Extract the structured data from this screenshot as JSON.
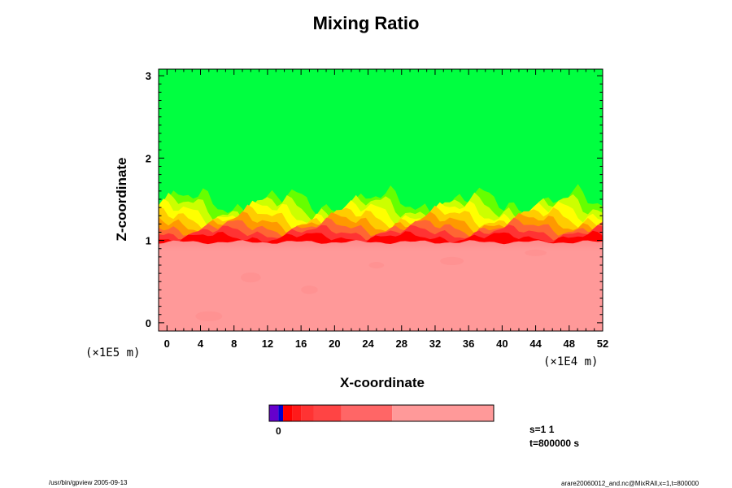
{
  "chart_data": {
    "type": "heatmap",
    "title": "Mixing Ratio",
    "xlabel": "X-coordinate",
    "ylabel": "Z-coordinate",
    "x_scale": "(×1E5 m)",
    "x_scale_right": "(×1E4 m)",
    "xlim": [
      -1,
      52
    ],
    "ylim": [
      -0.1,
      3.08
    ],
    "xticks": [
      "0",
      "4",
      "8",
      "12",
      "16",
      "20",
      "24",
      "28",
      "32",
      "36",
      "40",
      "44",
      "48",
      "52"
    ],
    "xtick_values": [
      0,
      4,
      8,
      12,
      16,
      20,
      24,
      28,
      32,
      36,
      40,
      44,
      48,
      52
    ],
    "yticks": [
      "0",
      "1",
      "2",
      "3"
    ],
    "ytick_values": [
      0,
      1,
      2,
      3
    ],
    "regions": [
      {
        "name": "lower layer",
        "z_range": [
          -0.1,
          0.98
        ],
        "color": "#ff9999"
      },
      {
        "name": "transition layer",
        "z_range": [
          0.98,
          1.5
        ],
        "colors": [
          "#ff0000",
          "#ff3333",
          "#ff6633",
          "#ff9900",
          "#ffcc00",
          "#ffff00",
          "#ccff00",
          "#66ff00"
        ]
      },
      {
        "name": "upper layer",
        "z_range": [
          1.5,
          3.08
        ],
        "color": "#00ff40"
      }
    ],
    "colorbar": {
      "label": "0",
      "segments": [
        {
          "color": "#6600cc",
          "weight": 1
        },
        {
          "color": "#0000cc",
          "weight": 0.5
        },
        {
          "color": "#ff0000",
          "weight": 1
        },
        {
          "color": "#ff1a1a",
          "weight": 1
        },
        {
          "color": "#ff3333",
          "weight": 1.3
        },
        {
          "color": "#ff4444",
          "weight": 3
        },
        {
          "color": "#ff6666",
          "weight": 5.5
        },
        {
          "color": "#ff9999",
          "weight": 11
        }
      ]
    }
  },
  "annotations": {
    "step": "s=1 1",
    "time": "t=800000 s"
  },
  "footer": {
    "left": "/usr/bin/gpview 2005-09-13",
    "right": "arare20060012_and.nc@MixRAll,x=1,t=800000"
  }
}
